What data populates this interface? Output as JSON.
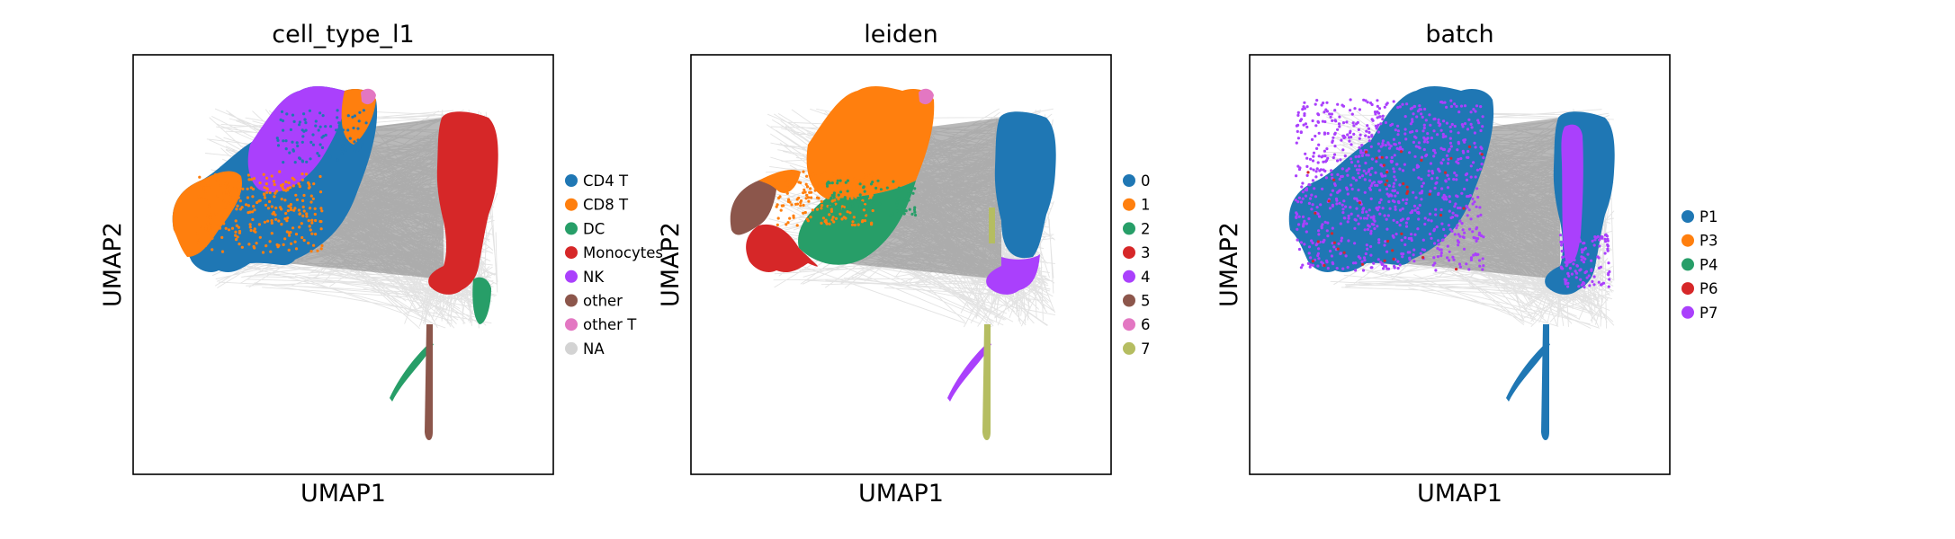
{
  "chart_data": [
    {
      "type": "scatter",
      "title": "cell_type_l1",
      "xlabel": "UMAP1",
      "ylabel": "UMAP2",
      "grid": false,
      "legend_position": "right",
      "series": [
        {
          "name": "CD4 T",
          "color": "#1f77b4"
        },
        {
          "name": "CD8 T",
          "color": "#ff7f0e"
        },
        {
          "name": "DC",
          "color": "#279e68"
        },
        {
          "name": "Monocytes",
          "color": "#d62728"
        },
        {
          "name": "NK",
          "color": "#aa40fc"
        },
        {
          "name": "other",
          "color": "#8c564b"
        },
        {
          "name": "other T",
          "color": "#e377c2"
        },
        {
          "name": "NA",
          "color": "#d3d3d3"
        }
      ]
    },
    {
      "type": "scatter",
      "title": "leiden",
      "xlabel": "UMAP1",
      "ylabel": "UMAP2",
      "grid": false,
      "legend_position": "right",
      "series": [
        {
          "name": "0",
          "color": "#1f77b4"
        },
        {
          "name": "1",
          "color": "#ff7f0e"
        },
        {
          "name": "2",
          "color": "#279e68"
        },
        {
          "name": "3",
          "color": "#d62728"
        },
        {
          "name": "4",
          "color": "#aa40fc"
        },
        {
          "name": "5",
          "color": "#8c564b"
        },
        {
          "name": "6",
          "color": "#e377c2"
        },
        {
          "name": "7",
          "color": "#b5bd61"
        }
      ]
    },
    {
      "type": "scatter",
      "title": "batch",
      "xlabel": "UMAP1",
      "ylabel": "UMAP2",
      "grid": false,
      "legend_position": "right",
      "series": [
        {
          "name": "P1",
          "color": "#1f77b4"
        },
        {
          "name": "P3",
          "color": "#ff7f0e"
        },
        {
          "name": "P4",
          "color": "#279e68"
        },
        {
          "name": "P6",
          "color": "#d62728"
        },
        {
          "name": "P7",
          "color": "#aa40fc"
        }
      ]
    }
  ],
  "edge_color": "#808080"
}
